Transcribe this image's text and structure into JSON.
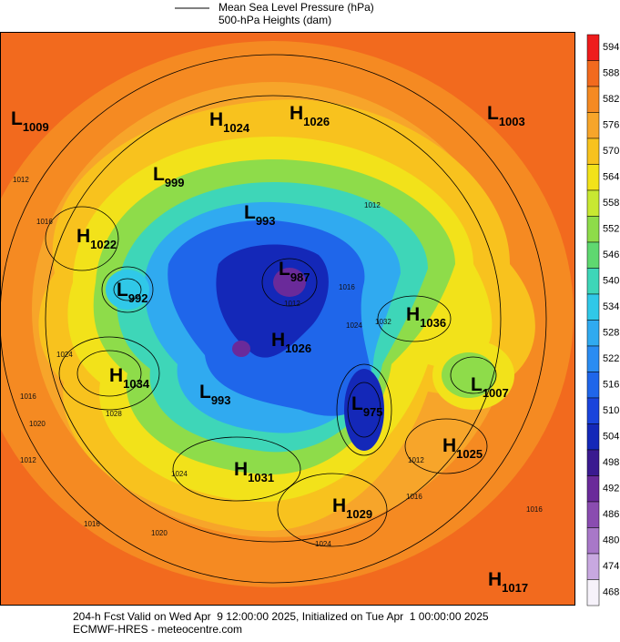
{
  "legend": {
    "line_label": "Mean Sea Level Pressure (hPa)",
    "fill_label": "500-hPa Heights (dam)"
  },
  "centers": [
    {
      "type": "L",
      "value": 1009
    },
    {
      "type": "H",
      "value": 1024
    },
    {
      "type": "H",
      "value": 1026
    },
    {
      "type": "L",
      "value": 1003
    },
    {
      "type": "L",
      "value": 999
    },
    {
      "type": "L",
      "value": 993
    },
    {
      "type": "H",
      "value": 1022
    },
    {
      "type": "L",
      "value": 992
    },
    {
      "type": "L",
      "value": 987
    },
    {
      "type": "H",
      "value": 1036
    },
    {
      "type": "H",
      "value": 1026
    },
    {
      "type": "H",
      "value": 1034
    },
    {
      "type": "L",
      "value": 1007
    },
    {
      "type": "L",
      "value": 993
    },
    {
      "type": "L",
      "value": 975
    },
    {
      "type": "H",
      "value": 1025
    },
    {
      "type": "H",
      "value": 1031
    },
    {
      "type": "H",
      "value": 1029
    },
    {
      "type": "H",
      "value": 1017
    }
  ],
  "isobar_labels": [
    1012,
    1016,
    1024,
    1016,
    1020,
    1028,
    1012,
    1024,
    1016,
    1020,
    1024,
    1016,
    1012,
    1012,
    1032,
    1024,
    1012,
    1016,
    1016
  ],
  "colorbar": {
    "ticks": [
      594,
      588,
      582,
      576,
      570,
      564,
      558,
      552,
      546,
      540,
      534,
      528,
      522,
      516,
      510,
      504,
      498,
      492,
      486,
      480,
      474,
      468
    ],
    "colors": [
      "#ee1c1c",
      "#f26a1e",
      "#f58a22",
      "#f7a52a",
      "#f8c21e",
      "#f2e21a",
      "#c8e832",
      "#8edc4a",
      "#5fd870",
      "#3ed6b8",
      "#30c8e8",
      "#30aaf0",
      "#2a8cf2",
      "#1f66ea",
      "#1a44dc",
      "#1428b8",
      "#3a1a90",
      "#6a2a9a",
      "#8a4cb0",
      "#a878c8",
      "#c8a8e0",
      "#f6f2fa"
    ]
  },
  "footer": {
    "line1": "204-h Fcst Valid on Wed Apr  9 12:00:00 2025, Initialized on Tue Apr  1 00:00:00 2025",
    "line2": "ECMWF-HRES - meteocentre.com"
  }
}
